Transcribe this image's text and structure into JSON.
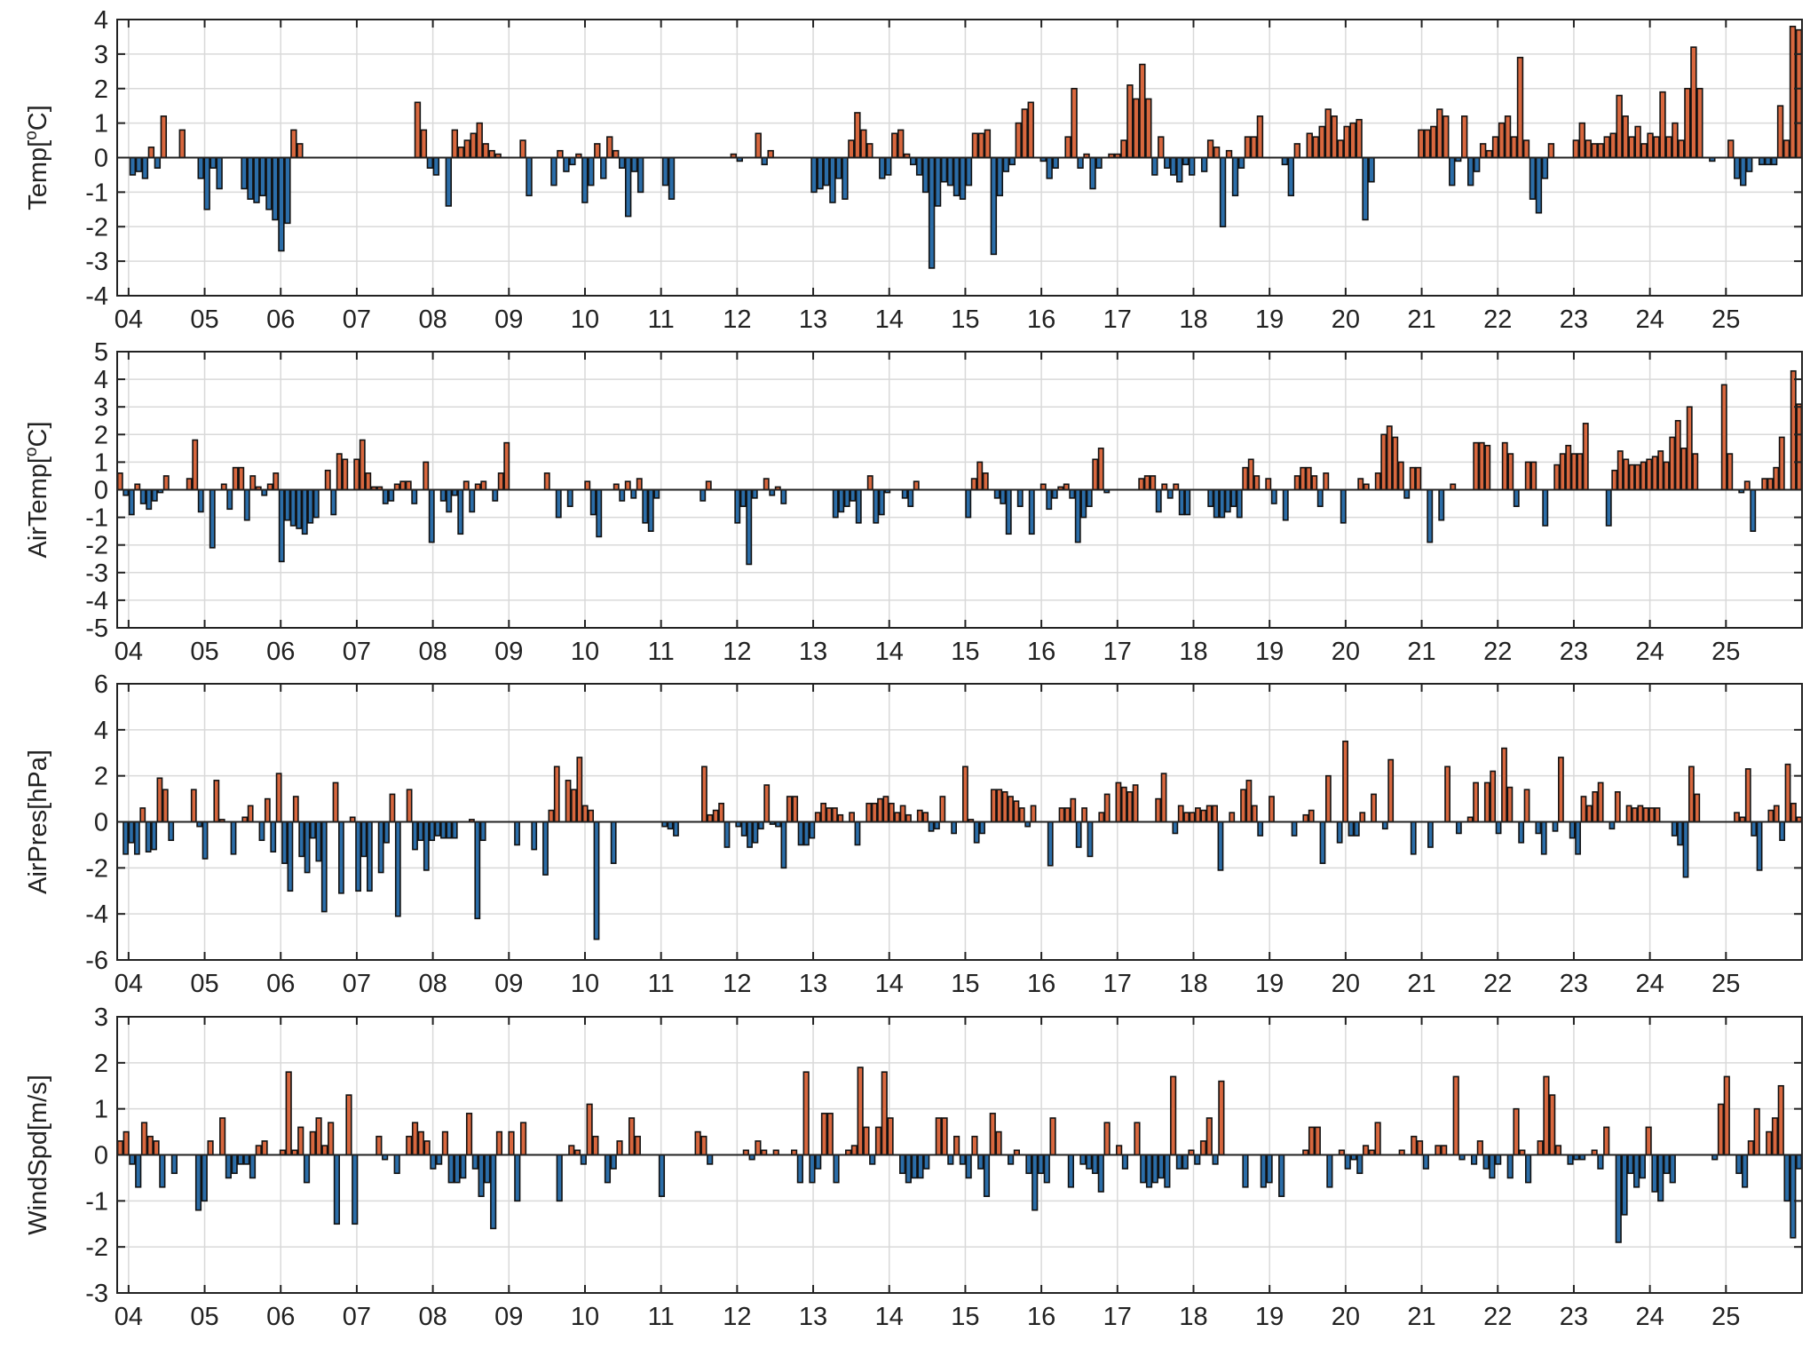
{
  "chart_data": [
    {
      "type": "bar",
      "ylabel_main": "Temp[",
      "ylabel_sup": "o",
      "ylabel_tail": "C]",
      "ylim": [
        -4,
        4
      ],
      "yticks": [
        -4,
        -3,
        -2,
        -1,
        0,
        1,
        2,
        3,
        4
      ],
      "xticks": [
        "04",
        "05",
        "06",
        "07",
        "08",
        "09",
        "10",
        "11",
        "12",
        "13",
        "14",
        "15",
        "16",
        "17",
        "18",
        "19",
        "20",
        "21",
        "22",
        "23",
        "24",
        "25"
      ],
      "x_range_days": [
        3.85,
        26.0
      ],
      "grid": true,
      "values": [
        0.0,
        0.0,
        -0.5,
        -0.4,
        -0.6,
        0.3,
        -0.3,
        1.2,
        0.0,
        0.0,
        0.8,
        0.0,
        0.0,
        -0.6,
        -1.5,
        -0.3,
        -0.9,
        0.0,
        0.0,
        0.0,
        -0.9,
        -1.2,
        -1.3,
        -1.1,
        -1.5,
        -1.8,
        -2.7,
        -1.9,
        0.8,
        0.4,
        0.0,
        0.0,
        0.0,
        0.0,
        0.0,
        0.0,
        0.0,
        0.0,
        0.0,
        0.0,
        0.0,
        0.0,
        0.0,
        0.0,
        0.0,
        0.0,
        0.0,
        0.0,
        1.6,
        0.8,
        -0.3,
        -0.5,
        0.0,
        -1.4,
        0.8,
        0.3,
        0.5,
        0.7,
        1.0,
        0.4,
        0.2,
        0.1,
        0.0,
        0.0,
        0.0,
        0.5,
        -1.1,
        0.0,
        0.0,
        0.0,
        -0.8,
        0.2,
        -0.4,
        -0.2,
        0.1,
        -1.3,
        -0.8,
        0.4,
        -0.6,
        0.6,
        0.2,
        -0.3,
        -1.7,
        -0.4,
        -1.0,
        0.0,
        0.0,
        0.0,
        -0.8,
        -1.2,
        0.0,
        0.0,
        0.0,
        0.0,
        0.0,
        0.0,
        0.0,
        0.0,
        0.0,
        0.1,
        -0.1,
        0.0,
        0.0,
        0.7,
        -0.2,
        0.2,
        0.0,
        0.0,
        0.0,
        0.0,
        0.0,
        0.0,
        -1.0,
        -0.9,
        -0.8,
        -1.3,
        -0.6,
        -1.2,
        0.5,
        1.3,
        0.8,
        0.4,
        0.0,
        -0.6,
        -0.5,
        0.7,
        0.8,
        0.1,
        -0.2,
        -0.5,
        -1.0,
        -3.2,
        -1.4,
        -0.7,
        -0.8,
        -1.1,
        -1.2,
        -0.8,
        0.7,
        0.7,
        0.8,
        -2.8,
        -1.1,
        -0.4,
        -0.2,
        1.0,
        1.4,
        1.6,
        0.0,
        -0.1,
        -0.6,
        -0.3,
        0.0,
        0.6,
        2.0,
        -0.3,
        0.1,
        -0.9,
        -0.3,
        0.0,
        0.1,
        0.1,
        0.5,
        2.1,
        1.7,
        2.7,
        1.7,
        -0.5,
        0.6,
        -0.3,
        -0.5,
        -0.7,
        -0.2,
        -0.5,
        0.0,
        -0.4,
        0.5,
        0.3,
        -2.0,
        0.2,
        -1.1,
        -0.3,
        0.6,
        0.6,
        1.2,
        0.0,
        0.0,
        0.0,
        -0.2,
        -1.1,
        0.4,
        0.0,
        0.7,
        0.6,
        0.9,
        1.4,
        1.2,
        0.5,
        0.9,
        1.0,
        1.1,
        -1.8,
        -0.7,
        0.0,
        0.0,
        0.0,
        0.0,
        0.0,
        0.0,
        0.0,
        0.8,
        0.8,
        0.9,
        1.4,
        1.2,
        -0.8,
        -0.1,
        1.2,
        -0.8,
        -0.4,
        0.4,
        0.2,
        0.6,
        1.0,
        1.2,
        0.6,
        2.9,
        0.5,
        -1.2,
        -1.6,
        -0.6,
        0.4,
        0.0,
        0.0,
        0.0,
        0.5,
        1.0,
        0.5,
        0.4,
        0.4,
        0.6,
        0.7,
        1.8,
        1.2,
        0.6,
        0.9,
        0.4,
        0.7,
        0.6,
        1.9,
        0.6,
        1.0,
        0.5,
        2.0,
        3.2,
        2.0,
        0.0,
        -0.1,
        0.0,
        0.0,
        0.5,
        -0.6,
        -0.8,
        -0.4,
        0.0,
        -0.2,
        -0.2,
        -0.2,
        1.5,
        0.5,
        3.8,
        3.7
      ]
    },
    {
      "type": "bar",
      "ylabel_main": "AirTemp[",
      "ylabel_sup": "o",
      "ylabel_tail": "C]",
      "ylim": [
        -5,
        5
      ],
      "yticks": [
        -5,
        -4,
        -3,
        -2,
        -1,
        0,
        1,
        2,
        3,
        4,
        5
      ],
      "xticks": [
        "04",
        "05",
        "06",
        "07",
        "08",
        "09",
        "10",
        "11",
        "12",
        "13",
        "14",
        "15",
        "16",
        "17",
        "18",
        "19",
        "20",
        "21",
        "22",
        "23",
        "24",
        "25"
      ],
      "x_range_days": [
        3.85,
        26.0
      ],
      "grid": true,
      "values": [
        0.6,
        -0.2,
        -0.9,
        0.2,
        -0.5,
        -0.7,
        -0.4,
        -0.1,
        0.5,
        0.0,
        0.0,
        0.0,
        0.4,
        1.8,
        -0.8,
        0.0,
        -2.1,
        0.0,
        0.2,
        -0.7,
        0.8,
        0.8,
        -1.1,
        0.5,
        0.1,
        -0.2,
        0.2,
        0.6,
        -2.6,
        -1.1,
        -1.3,
        -1.4,
        -1.6,
        -1.2,
        -1.0,
        0.0,
        0.7,
        -0.9,
        1.3,
        1.1,
        0.0,
        1.1,
        1.8,
        0.6,
        0.1,
        0.1,
        -0.5,
        -0.4,
        0.2,
        0.3,
        0.3,
        -0.5,
        0.0,
        1.0,
        -1.9,
        0.0,
        -0.4,
        -0.8,
        -0.2,
        -1.6,
        0.3,
        -0.8,
        0.2,
        0.3,
        0.0,
        -0.4,
        0.6,
        1.7,
        0.0,
        0.0,
        0.0,
        0.0,
        0.0,
        0.0,
        0.6,
        0.0,
        -1.0,
        0.0,
        -0.6,
        0.0,
        0.0,
        0.3,
        -0.9,
        -1.7,
        0.0,
        0.0,
        0.2,
        -0.4,
        0.3,
        -0.3,
        0.4,
        -1.2,
        -1.5,
        -0.3,
        0.0,
        0.0,
        0.0,
        0.0,
        0.0,
        0.0,
        0.0,
        -0.4,
        0.3,
        0.0,
        0.0,
        0.0,
        0.0,
        -1.2,
        -0.6,
        -2.7,
        -0.3,
        0.0,
        0.4,
        -0.2,
        0.1,
        -0.5,
        0.0,
        0.0,
        0.0,
        0.0,
        0.0,
        0.0,
        0.0,
        0.0,
        -1.0,
        -0.8,
        -0.6,
        -0.4,
        -1.2,
        0.0,
        0.5,
        -1.2,
        -0.9,
        -0.1,
        0.0,
        0.0,
        -0.3,
        -0.6,
        0.3,
        0.0,
        0.0,
        0.0,
        0.0,
        0.0,
        0.0,
        0.0,
        0.0,
        -1.0,
        0.4,
        1.0,
        0.6,
        0.0,
        -0.3,
        -0.5,
        -1.6,
        0.0,
        -0.6,
        0.0,
        -1.6,
        0.0,
        0.2,
        -0.7,
        -0.3,
        0.1,
        0.2,
        -0.3,
        -1.9,
        -1.0,
        -0.6,
        1.1,
        1.5,
        -0.1,
        0.0,
        0.0,
        0.0,
        0.0,
        0.0,
        0.4,
        0.5,
        0.5,
        -0.8,
        0.2,
        -0.3,
        0.2,
        -0.9,
        -0.9,
        0.0,
        0.0,
        0.0,
        -0.6,
        -1.0,
        -1.0,
        -0.8,
        -0.6,
        -1.0,
        0.8,
        1.1,
        0.5,
        0.0,
        0.4,
        -0.5,
        0.0,
        -1.1,
        0.0,
        0.5,
        0.8,
        0.8,
        0.5,
        -0.6,
        0.6,
        0.0,
        0.0,
        -1.2,
        0.0,
        0.0,
        0.4,
        0.2,
        0.0,
        0.6,
        2.0,
        2.3,
        1.9,
        1.0,
        -0.3,
        0.8,
        0.8,
        0.0,
        -1.9,
        0.0,
        -1.1,
        0.0,
        0.2,
        0.0,
        0.0,
        0.0,
        1.7,
        1.7,
        1.6,
        0.0,
        0.0,
        1.7,
        1.3,
        -0.6,
        0.0,
        1.0,
        1.0,
        0.0,
        -1.3,
        0.0,
        0.9,
        1.3,
        1.6,
        1.3,
        1.3,
        2.4,
        0.0,
        0.0,
        0.0,
        -1.3,
        0.7,
        1.4,
        1.1,
        0.9,
        0.9,
        1.0,
        1.1,
        1.2,
        1.4,
        1.0,
        1.9,
        2.5,
        1.5,
        3.0,
        1.3,
        0.0,
        0.0,
        0.0,
        0.0,
        3.8,
        1.3,
        0.0,
        -0.1,
        0.3,
        -1.5,
        0.0,
        0.4,
        0.4,
        0.8,
        1.9,
        0.0,
        4.3,
        3.1
      ]
    },
    {
      "type": "bar",
      "ylabel_main": "AirPres[hPa]",
      "ylabel_sup": "",
      "ylabel_tail": "",
      "ylim": [
        -6,
        6
      ],
      "yticks": [
        -6,
        -4,
        -2,
        0,
        2,
        4,
        6
      ],
      "xticks": [
        "04",
        "05",
        "06",
        "07",
        "08",
        "09",
        "10",
        "11",
        "12",
        "13",
        "14",
        "15",
        "16",
        "17",
        "18",
        "19",
        "20",
        "21",
        "22",
        "23",
        "24",
        "25"
      ],
      "x_range_days": [
        3.85,
        26.0
      ],
      "grid": true,
      "values": [
        0.0,
        -1.4,
        -0.9,
        -1.4,
        0.6,
        -1.3,
        -1.2,
        1.9,
        1.4,
        -0.8,
        0.0,
        0.0,
        0.0,
        1.4,
        -0.2,
        -1.6,
        0.0,
        1.8,
        0.1,
        0.0,
        -1.4,
        0.0,
        0.2,
        0.7,
        0.0,
        -0.8,
        1.0,
        -1.3,
        2.1,
        -1.8,
        -3.0,
        1.1,
        -1.5,
        -2.2,
        -0.7,
        -1.7,
        -3.9,
        0.0,
        1.7,
        -3.1,
        0.0,
        0.2,
        -3.0,
        -1.5,
        -3.0,
        0.0,
        -2.2,
        -0.9,
        1.2,
        -4.1,
        0.0,
        1.4,
        -1.2,
        -0.8,
        -2.1,
        -0.8,
        -0.6,
        -0.7,
        -0.7,
        -0.7,
        0.0,
        0.0,
        0.1,
        -4.2,
        -0.8,
        0.0,
        0.0,
        0.0,
        0.0,
        0.0,
        -1.0,
        0.0,
        0.0,
        -1.2,
        0.0,
        -2.3,
        0.5,
        2.4,
        0.0,
        1.8,
        1.4,
        2.8,
        0.7,
        0.5,
        -5.1,
        0.0,
        0.0,
        -1.8,
        0.0,
        0.0,
        0.0,
        0.0,
        0.0,
        0.0,
        0.0,
        0.0,
        -0.2,
        -0.3,
        -0.6,
        0.0,
        0.0,
        0.0,
        0.0,
        2.4,
        0.3,
        0.5,
        0.8,
        -1.1,
        0.0,
        -0.2,
        -0.6,
        -1.1,
        -0.9,
        -0.3,
        1.6,
        -0.1,
        -0.2,
        -2.0,
        1.1,
        1.1,
        -1.0,
        -1.0,
        -0.7,
        0.4,
        0.8,
        0.6,
        0.6,
        0.3,
        0.0,
        0.4,
        -1.0,
        0.0,
        0.8,
        0.8,
        1.0,
        1.1,
        0.8,
        0.4,
        0.7,
        0.3,
        0.0,
        0.5,
        0.4,
        -0.4,
        -0.3,
        1.1,
        0.0,
        -0.5,
        0.0,
        2.4,
        0.1,
        -0.9,
        -0.5,
        0.0,
        1.4,
        1.4,
        1.3,
        1.1,
        0.9,
        0.6,
        -0.2,
        0.7,
        0.0,
        0.0,
        -1.9,
        0.0,
        0.6,
        0.6,
        1.0,
        -1.1,
        0.6,
        -1.5,
        0.0,
        0.4,
        1.2,
        0.0,
        1.7,
        1.5,
        1.3,
        1.6,
        0.0,
        0.0,
        0.0,
        1.0,
        2.1,
        0.0,
        -0.5,
        0.7,
        0.4,
        0.4,
        0.6,
        0.5,
        0.7,
        0.7,
        -2.1,
        0.0,
        0.4,
        0.0,
        1.4,
        1.8,
        0.7,
        -0.6,
        0.0,
        1.1,
        0.0,
        0.0,
        0.0,
        -0.6,
        0.0,
        0.3,
        0.5,
        0.0,
        -1.8,
        2.0,
        0.0,
        -0.9,
        3.5,
        -0.6,
        -0.6,
        0.4,
        0.0,
        1.2,
        0.0,
        -0.3,
        2.7,
        0.0,
        0.0,
        0.0,
        -1.4,
        0.0,
        0.0,
        -1.1,
        0.0,
        0.0,
        2.4,
        0.0,
        -0.5,
        0.0,
        0.2,
        1.7,
        0.0,
        1.7,
        2.2,
        -0.5,
        3.2,
        1.5,
        0.0,
        -0.9,
        1.4,
        0.0,
        -0.5,
        -1.4,
        0.0,
        -0.4,
        2.8,
        0.0,
        -0.7,
        -1.4,
        1.1,
        0.7,
        1.3,
        1.7,
        0.0,
        -0.3,
        1.3,
        0.0,
        0.7,
        0.6,
        0.7,
        0.6,
        0.6,
        0.6,
        0.0,
        0.0,
        -0.6,
        -1.0,
        -2.4,
        2.4,
        1.2,
        0.0,
        0.0,
        0.0,
        0.0,
        0.0,
        0.0,
        0.4,
        0.2,
        2.3,
        -0.6,
        -2.1,
        0.0,
        0.5,
        0.7,
        -0.8,
        2.5,
        0.8,
        0.2
      ]
    },
    {
      "type": "bar",
      "ylabel_main": "WindSpd[m/s]",
      "ylabel_sup": "",
      "ylabel_tail": "",
      "ylim": [
        -3,
        3
      ],
      "yticks": [
        -3,
        -2,
        -1,
        0,
        1,
        2,
        3
      ],
      "xticks": [
        "04",
        "05",
        "06",
        "07",
        "08",
        "09",
        "10",
        "11",
        "12",
        "13",
        "14",
        "15",
        "16",
        "17",
        "18",
        "19",
        "20",
        "21",
        "22",
        "23",
        "24",
        "25"
      ],
      "x_range_days": [
        3.85,
        26.0
      ],
      "grid": true,
      "values": [
        0.3,
        0.5,
        -0.2,
        -0.7,
        0.7,
        0.4,
        0.3,
        -0.7,
        0.0,
        -0.4,
        0.0,
        0.0,
        0.0,
        -1.2,
        -1.0,
        0.3,
        0.0,
        0.8,
        -0.5,
        -0.4,
        -0.2,
        -0.2,
        -0.5,
        0.2,
        0.3,
        0.0,
        0.0,
        0.1,
        1.8,
        0.1,
        0.6,
        -0.6,
        0.5,
        0.8,
        0.2,
        0.7,
        -1.5,
        0.0,
        1.3,
        -1.5,
        0.0,
        0.0,
        0.0,
        0.4,
        -0.1,
        0.0,
        -0.4,
        0.0,
        0.4,
        0.7,
        0.5,
        0.3,
        -0.3,
        -0.2,
        0.5,
        -0.6,
        -0.6,
        -0.5,
        0.9,
        -0.3,
        -0.9,
        -0.6,
        -1.6,
        0.5,
        0.0,
        0.5,
        -1.0,
        0.7,
        0.0,
        0.0,
        0.0,
        0.0,
        0.0,
        -1.0,
        0.0,
        0.2,
        0.1,
        -0.2,
        1.1,
        0.4,
        0.0,
        -0.6,
        -0.3,
        0.3,
        0.0,
        0.8,
        0.4,
        0.0,
        0.0,
        0.0,
        -0.9,
        0.0,
        0.0,
        0.0,
        0.0,
        0.0,
        0.5,
        0.4,
        -0.2,
        0.0,
        0.0,
        0.0,
        0.0,
        0.0,
        0.1,
        -0.1,
        0.3,
        0.1,
        0.0,
        0.1,
        0.0,
        0.0,
        0.1,
        -0.6,
        1.8,
        -0.6,
        -0.3,
        0.9,
        0.9,
        -0.6,
        0.0,
        0.1,
        0.2,
        1.9,
        0.6,
        -0.2,
        0.6,
        1.8,
        0.8,
        0.0,
        -0.4,
        -0.6,
        -0.5,
        -0.5,
        -0.3,
        0.0,
        0.8,
        0.8,
        -0.2,
        0.4,
        -0.2,
        -0.5,
        0.4,
        -0.3,
        -0.9,
        0.9,
        0.5,
        0.0,
        -0.2,
        0.1,
        0.0,
        -0.4,
        -1.2,
        -0.4,
        -0.6,
        0.8,
        0.0,
        0.0,
        -0.7,
        0.0,
        -0.2,
        -0.3,
        -0.4,
        -0.8,
        0.7,
        0.0,
        0.2,
        -0.3,
        0.0,
        0.7,
        -0.6,
        -0.7,
        -0.6,
        -0.5,
        -0.7,
        1.7,
        -0.3,
        -0.3,
        0.1,
        -0.2,
        0.3,
        0.8,
        -0.2,
        1.6,
        0.0,
        0.0,
        0.0,
        -0.7,
        0.0,
        0.0,
        -0.7,
        -0.6,
        0.0,
        -0.9,
        0.0,
        0.0,
        0.0,
        0.1,
        0.6,
        0.6,
        0.0,
        -0.7,
        0.0,
        0.1,
        -0.3,
        -0.1,
        -0.4,
        0.2,
        0.1,
        0.7,
        0.0,
        0.0,
        0.0,
        0.1,
        0.0,
        0.4,
        0.3,
        -0.3,
        0.0,
        0.2,
        0.2,
        0.0,
        1.7,
        -0.1,
        0.0,
        -0.2,
        0.3,
        -0.3,
        -0.5,
        -0.2,
        0.0,
        -0.5,
        1.0,
        0.1,
        -0.6,
        0.0,
        0.3,
        1.7,
        1.3,
        0.2,
        0.0,
        -0.2,
        -0.1,
        -0.1,
        0.0,
        0.1,
        -0.3,
        0.6,
        0.0,
        -1.9,
        -1.3,
        -0.4,
        -0.7,
        -0.5,
        0.6,
        -0.8,
        -1.0,
        -0.4,
        -0.6,
        0.0,
        0.0,
        0.0,
        0.0,
        0.0,
        0.0,
        -0.1,
        1.1,
        1.7,
        0.0,
        -0.4,
        -0.7,
        0.3,
        1.0,
        0.0,
        0.5,
        0.8,
        1.5,
        -1.0,
        -1.8,
        -0.3
      ]
    }
  ],
  "colors": {
    "positive": "#d8673e",
    "negative": "#2b6da8",
    "bar_stroke": "#111111",
    "grid": "#d9d9d9",
    "axis": "#222222"
  }
}
